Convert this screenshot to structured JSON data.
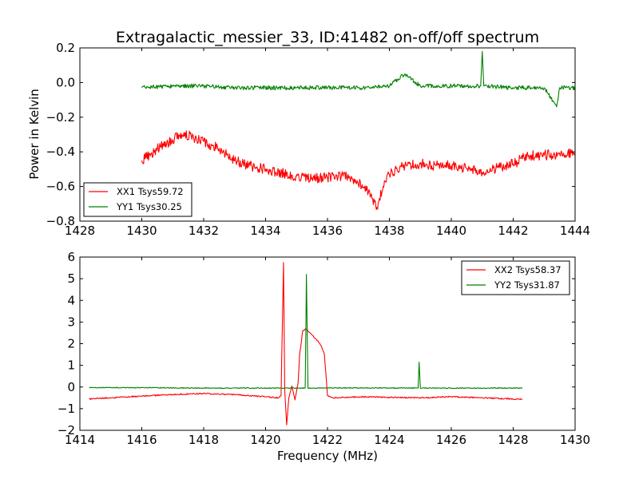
{
  "chart_data": [
    {
      "type": "line",
      "title": "Extragalactic_messier_33, ID:41482 on-off/off spectrum",
      "xlabel": "",
      "ylabel": "Power in Kelvin",
      "xlim": [
        1428,
        1444
      ],
      "ylim": [
        -0.8,
        0.2
      ],
      "xticks": [
        1428,
        1430,
        1432,
        1434,
        1436,
        1438,
        1440,
        1442,
        1444
      ],
      "yticks": [
        -0.8,
        -0.6,
        -0.4,
        -0.2,
        0.0,
        0.2
      ],
      "xtick_labels": [
        "1428",
        "1430",
        "1432",
        "1434",
        "1436",
        "1438",
        "1440",
        "1442",
        "1444"
      ],
      "ytick_labels": [
        "−0.8",
        "−0.6",
        "−0.4",
        "−0.2",
        "0.0",
        "0.2"
      ],
      "grid": false,
      "legend_position": "bottom-left",
      "series": [
        {
          "name": "XX1 Tsys59.72",
          "color": "#ff0000",
          "x": [
            1430.0,
            1430.3,
            1430.6,
            1431.0,
            1431.3,
            1431.6,
            1432.0,
            1432.5,
            1433.0,
            1433.5,
            1434.0,
            1434.5,
            1435.0,
            1435.5,
            1436.0,
            1436.5,
            1436.9,
            1437.2,
            1437.4,
            1437.6,
            1437.8,
            1438.0,
            1438.5,
            1439.0,
            1439.5,
            1440.0,
            1440.5,
            1441.0,
            1441.5,
            1442.0,
            1442.3,
            1442.6,
            1443.0,
            1443.5,
            1444.0
          ],
          "values": [
            -0.45,
            -0.41,
            -0.37,
            -0.33,
            -0.3,
            -0.31,
            -0.34,
            -0.38,
            -0.45,
            -0.48,
            -0.5,
            -0.52,
            -0.54,
            -0.55,
            -0.55,
            -0.54,
            -0.56,
            -0.6,
            -0.65,
            -0.72,
            -0.6,
            -0.53,
            -0.48,
            -0.47,
            -0.48,
            -0.48,
            -0.5,
            -0.52,
            -0.49,
            -0.47,
            -0.44,
            -0.42,
            -0.42,
            -0.41,
            -0.41
          ],
          "noise": 0.03
        },
        {
          "name": "YY1 Tsys30.25",
          "color": "#008000",
          "x": [
            1430.0,
            1431.0,
            1432.0,
            1433.0,
            1434.0,
            1435.0,
            1436.0,
            1437.0,
            1438.0,
            1438.5,
            1439.0,
            1440.0,
            1440.95,
            1441.0,
            1441.05,
            1442.0,
            1443.0,
            1443.4,
            1443.5,
            1444.0
          ],
          "values": [
            -0.03,
            -0.02,
            -0.02,
            -0.03,
            -0.03,
            -0.03,
            -0.03,
            -0.03,
            -0.02,
            0.05,
            -0.02,
            -0.02,
            -0.02,
            0.18,
            -0.02,
            -0.03,
            -0.03,
            -0.14,
            -0.03,
            -0.03
          ],
          "noise": 0.012
        }
      ]
    },
    {
      "type": "line",
      "title": "",
      "xlabel": "Frequency (MHz)",
      "ylabel": "",
      "xlim": [
        1414,
        1430
      ],
      "ylim": [
        -2,
        6
      ],
      "xticks": [
        1414,
        1416,
        1418,
        1420,
        1422,
        1424,
        1426,
        1428,
        1430
      ],
      "yticks": [
        -2,
        -1,
        0,
        1,
        2,
        3,
        4,
        5,
        6
      ],
      "xtick_labels": [
        "1414",
        "1416",
        "1418",
        "1420",
        "1422",
        "1424",
        "1426",
        "1428",
        "1430"
      ],
      "ytick_labels": [
        "−2",
        "−1",
        "0",
        "1",
        "2",
        "3",
        "4",
        "5",
        "6"
      ],
      "grid": false,
      "legend_position": "top-right",
      "series": [
        {
          "name": "XX2 Tsys58.37",
          "color": "#ff0000",
          "x": [
            1414.3,
            1415.0,
            1416.0,
            1417.0,
            1418.0,
            1419.0,
            1420.0,
            1420.4,
            1420.5,
            1420.58,
            1420.62,
            1420.68,
            1420.75,
            1420.85,
            1420.95,
            1421.05,
            1421.1,
            1421.2,
            1421.3,
            1421.5,
            1421.7,
            1421.8,
            1421.9,
            1422.0,
            1422.2,
            1423.0,
            1424.0,
            1425.0,
            1426.0,
            1427.0,
            1428.3
          ],
          "values": [
            -0.55,
            -0.5,
            -0.42,
            -0.35,
            -0.3,
            -0.35,
            -0.45,
            -0.5,
            -0.4,
            5.75,
            -0.2,
            -1.75,
            -0.5,
            0.05,
            -0.6,
            0.2,
            1.5,
            2.6,
            2.7,
            2.4,
            2.1,
            1.9,
            1.5,
            -0.4,
            -0.5,
            -0.45,
            -0.48,
            -0.5,
            -0.45,
            -0.5,
            -0.57
          ],
          "noise": 0.03
        },
        {
          "name": "YY2 Tsys31.87",
          "color": "#008000",
          "x": [
            1414.3,
            1416.0,
            1418.0,
            1420.0,
            1421.0,
            1421.28,
            1421.32,
            1421.37,
            1422.0,
            1424.0,
            1424.93,
            1424.96,
            1425.0,
            1426.0,
            1428.3
          ],
          "values": [
            -0.03,
            -0.03,
            -0.05,
            -0.05,
            -0.05,
            -0.05,
            5.2,
            -0.05,
            -0.04,
            -0.05,
            -0.05,
            1.15,
            -0.05,
            -0.05,
            -0.05
          ],
          "noise": 0.02
        }
      ]
    }
  ]
}
